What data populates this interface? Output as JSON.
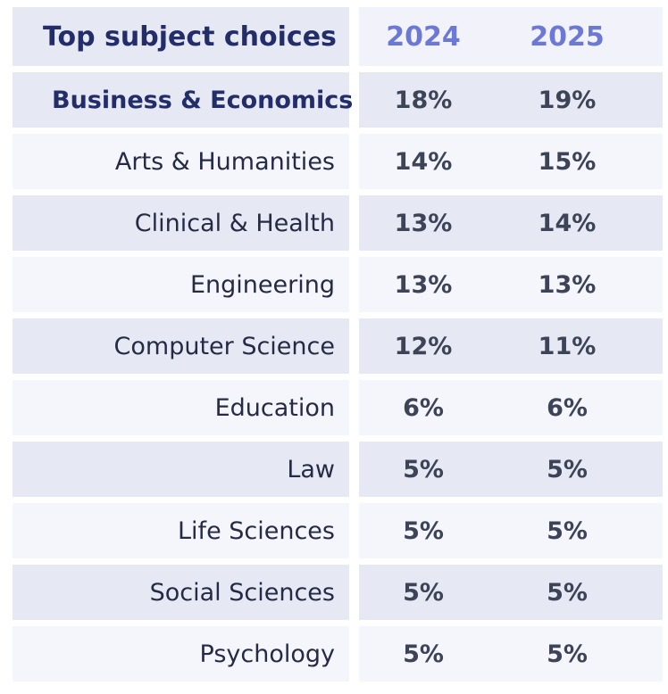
{
  "chart_data": {
    "type": "table",
    "title": "Top subject choices",
    "columns": [
      "2024",
      "2025"
    ],
    "unit": "%",
    "rows": [
      {
        "label": "Business & Economics",
        "v2024": "18%",
        "v2025": "19%"
      },
      {
        "label": "Arts & Humanities",
        "v2024": "14%",
        "v2025": "15%"
      },
      {
        "label": "Clinical & Health",
        "v2024": "13%",
        "v2025": "14%"
      },
      {
        "label": "Engineering",
        "v2024": "13%",
        "v2025": "13%"
      },
      {
        "label": "Computer Science",
        "v2024": "12%",
        "v2025": "11%"
      },
      {
        "label": "Education",
        "v2024": "6%",
        "v2025": "6%"
      },
      {
        "label": "Law",
        "v2024": "5%",
        "v2025": "5%"
      },
      {
        "label": "Life Sciences",
        "v2024": "5%",
        "v2025": "5%"
      },
      {
        "label": "Social Sciences",
        "v2024": "5%",
        "v2025": "5%"
      },
      {
        "label": "Psychology",
        "v2024": "5%",
        "v2025": "5%"
      }
    ]
  },
  "colors": {
    "row_shade": "#e6e9f4",
    "row_light": "#f5f6fb",
    "title_text": "#232d6a",
    "year_header": "#6b78d6",
    "value_text": "#3d4457",
    "label_text": "#252b45"
  }
}
